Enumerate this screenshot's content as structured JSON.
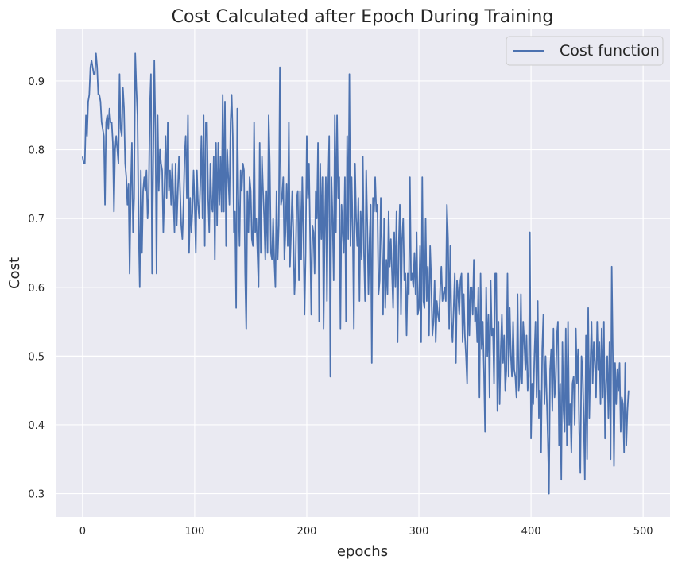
{
  "chart_data": {
    "type": "line",
    "title": "Cost Calculated after Epoch During Training",
    "xlabel": "epochs",
    "ylabel": "Cost",
    "xlim": [
      -24,
      524
    ],
    "ylim": [
      0.266,
      0.975
    ],
    "xticks": [
      0,
      100,
      200,
      300,
      400,
      500
    ],
    "yticks": [
      0.3,
      0.4,
      0.5,
      0.6,
      0.7,
      0.8,
      0.9
    ],
    "ytick_labels": [
      "0.3",
      "0.4",
      "0.5",
      "0.6",
      "0.7",
      "0.8",
      "0.9"
    ],
    "grid": true,
    "legend": {
      "placement": "top-right",
      "entries": [
        "Cost function"
      ]
    },
    "colors": {
      "line": "#4c72b0",
      "background": "#eaeaf2",
      "grid": "#ffffff"
    },
    "series": [
      {
        "name": "Cost function",
        "x_start": 0,
        "x_step": 1,
        "values": [
          0.79,
          0.78,
          0.78,
          0.85,
          0.82,
          0.87,
          0.88,
          0.92,
          0.93,
          0.92,
          0.91,
          0.91,
          0.94,
          0.92,
          0.88,
          0.88,
          0.87,
          0.84,
          0.83,
          0.82,
          0.72,
          0.84,
          0.85,
          0.83,
          0.86,
          0.84,
          0.84,
          0.81,
          0.71,
          0.8,
          0.82,
          0.8,
          0.78,
          0.91,
          0.83,
          0.82,
          0.89,
          0.86,
          0.78,
          0.76,
          0.72,
          0.75,
          0.62,
          0.74,
          0.81,
          0.68,
          0.73,
          0.94,
          0.89,
          0.85,
          0.69,
          0.6,
          0.77,
          0.65,
          0.74,
          0.76,
          0.74,
          0.77,
          0.7,
          0.73,
          0.86,
          0.91,
          0.62,
          0.78,
          0.93,
          0.83,
          0.62,
          0.85,
          0.74,
          0.8,
          0.78,
          0.77,
          0.68,
          0.74,
          0.82,
          0.73,
          0.84,
          0.74,
          0.77,
          0.72,
          0.78,
          0.73,
          0.68,
          0.78,
          0.69,
          0.74,
          0.79,
          0.74,
          0.69,
          0.67,
          0.72,
          0.79,
          0.82,
          0.73,
          0.85,
          0.65,
          0.73,
          0.68,
          0.71,
          0.77,
          0.72,
          0.65,
          0.77,
          0.72,
          0.7,
          0.75,
          0.82,
          0.7,
          0.85,
          0.66,
          0.84,
          0.84,
          0.73,
          0.68,
          0.78,
          0.72,
          0.71,
          0.79,
          0.64,
          0.81,
          0.69,
          0.81,
          0.72,
          0.79,
          0.71,
          0.88,
          0.71,
          0.87,
          0.66,
          0.8,
          0.76,
          0.72,
          0.84,
          0.88,
          0.82,
          0.68,
          0.71,
          0.57,
          0.86,
          0.73,
          0.66,
          0.77,
          0.74,
          0.78,
          0.77,
          0.62,
          0.54,
          0.74,
          0.68,
          0.76,
          0.74,
          0.67,
          0.66,
          0.84,
          0.68,
          0.7,
          0.65,
          0.6,
          0.81,
          0.65,
          0.79,
          0.74,
          0.7,
          0.64,
          0.74,
          0.65,
          0.85,
          0.78,
          0.65,
          0.64,
          0.7,
          0.64,
          0.6,
          0.74,
          0.64,
          0.69,
          0.92,
          0.72,
          0.73,
          0.76,
          0.64,
          0.68,
          0.75,
          0.66,
          0.84,
          0.63,
          0.68,
          0.74,
          0.68,
          0.59,
          0.63,
          0.73,
          0.74,
          0.61,
          0.74,
          0.64,
          0.76,
          0.68,
          0.56,
          0.65,
          0.82,
          0.73,
          0.78,
          0.67,
          0.56,
          0.69,
          0.68,
          0.62,
          0.74,
          0.7,
          0.81,
          0.55,
          0.78,
          0.67,
          0.76,
          0.54,
          0.68,
          0.76,
          0.58,
          0.74,
          0.82,
          0.47,
          0.76,
          0.7,
          0.61,
          0.85,
          0.68,
          0.85,
          0.73,
          0.76,
          0.54,
          0.72,
          0.68,
          0.65,
          0.76,
          0.55,
          0.82,
          0.67,
          0.91,
          0.66,
          0.76,
          0.68,
          0.54,
          0.78,
          0.7,
          0.66,
          0.73,
          0.58,
          0.71,
          0.64,
          0.79,
          0.65,
          0.58,
          0.77,
          0.69,
          0.59,
          0.67,
          0.72,
          0.49,
          0.73,
          0.71,
          0.76,
          0.71,
          0.72,
          0.59,
          0.61,
          0.73,
          0.66,
          0.56,
          0.7,
          0.57,
          0.64,
          0.59,
          0.71,
          0.63,
          0.67,
          0.62,
          0.57,
          0.68,
          0.6,
          0.71,
          0.52,
          0.66,
          0.72,
          0.56,
          0.67,
          0.7,
          0.61,
          0.62,
          0.53,
          0.62,
          0.59,
          0.76,
          0.61,
          0.62,
          0.6,
          0.65,
          0.59,
          0.68,
          0.56,
          0.57,
          0.66,
          0.52,
          0.76,
          0.58,
          0.57,
          0.7,
          0.58,
          0.63,
          0.53,
          0.66,
          0.61,
          0.53,
          0.55,
          0.61,
          0.52,
          0.58,
          0.56,
          0.55,
          0.6,
          0.63,
          0.58,
          0.59,
          0.6,
          0.58,
          0.72,
          0.67,
          0.54,
          0.66,
          0.55,
          0.52,
          0.57,
          0.62,
          0.49,
          0.61,
          0.59,
          0.56,
          0.61,
          0.62,
          0.52,
          0.59,
          0.53,
          0.5,
          0.46,
          0.62,
          0.53,
          0.6,
          0.6,
          0.56,
          0.64,
          0.55,
          0.57,
          0.52,
          0.6,
          0.44,
          0.62,
          0.51,
          0.55,
          0.48,
          0.39,
          0.6,
          0.5,
          0.56,
          0.44,
          0.61,
          0.53,
          0.54,
          0.46,
          0.62,
          0.62,
          0.42,
          0.55,
          0.43,
          0.51,
          0.56,
          0.49,
          0.53,
          0.45,
          0.48,
          0.62,
          0.47,
          0.57,
          0.5,
          0.47,
          0.55,
          0.48,
          0.47,
          0.44,
          0.59,
          0.45,
          0.47,
          0.59,
          0.46,
          0.55,
          0.52,
          0.48,
          0.53,
          0.45,
          0.47,
          0.68,
          0.38,
          0.46,
          0.43,
          0.5,
          0.55,
          0.44,
          0.58,
          0.41,
          0.45,
          0.36,
          0.51,
          0.56,
          0.43,
          0.5,
          0.44,
          0.38,
          0.3,
          0.48,
          0.51,
          0.42,
          0.54,
          0.44,
          0.46,
          0.53,
          0.55,
          0.37,
          0.46,
          0.32,
          0.52,
          0.42,
          0.39,
          0.54,
          0.37,
          0.55,
          0.4,
          0.43,
          0.36,
          0.46,
          0.47,
          0.4,
          0.54,
          0.46,
          0.51,
          0.39,
          0.33,
          0.5,
          0.48,
          0.41,
          0.32,
          0.53,
          0.35,
          0.57,
          0.41,
          0.49,
          0.55,
          0.46,
          0.52,
          0.49,
          0.44,
          0.55,
          0.48,
          0.52,
          0.43,
          0.54,
          0.44,
          0.55,
          0.38,
          0.46,
          0.5,
          0.41,
          0.52,
          0.35,
          0.63,
          0.5,
          0.34,
          0.49,
          0.43,
          0.48,
          0.45,
          0.49,
          0.39,
          0.44,
          0.43,
          0.36,
          0.49,
          0.37,
          0.42,
          0.45
        ]
      }
    ]
  }
}
